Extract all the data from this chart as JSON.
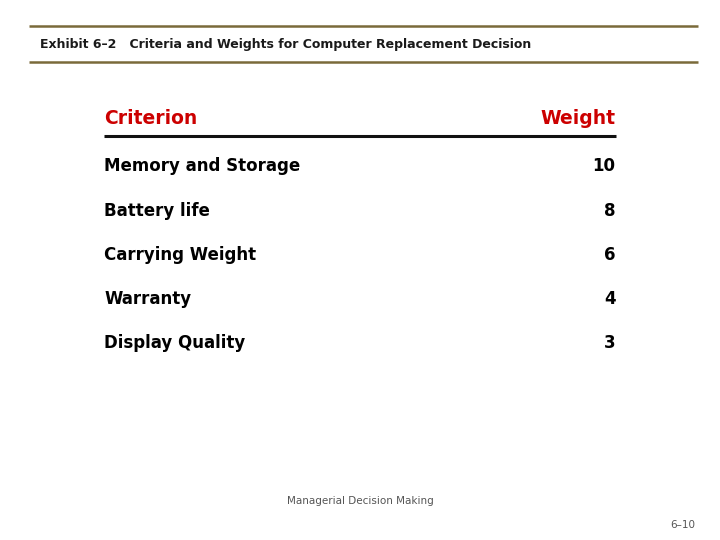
{
  "title": "Exhibit 6–2   Criteria and Weights for Computer Replacement Decision",
  "header_criterion": "Criterion",
  "header_weight": "Weight",
  "rows": [
    {
      "criterion": "Memory and Storage",
      "weight": "10"
    },
    {
      "criterion": "Battery life",
      "weight": "8"
    },
    {
      "criterion": "Carrying Weight",
      "weight": "6"
    },
    {
      "criterion": "Warranty",
      "weight": "4"
    },
    {
      "criterion": "Display Quality",
      "weight": "3"
    }
  ],
  "footer_center": "Managerial Decision Making",
  "footer_right": "6–10",
  "bg_color": "#ffffff",
  "title_color": "#1a1a1a",
  "header_color": "#cc0000",
  "row_text_color": "#000000",
  "footer_color": "#555555",
  "line_color": "#7a6a3a",
  "title_fontsize": 9.0,
  "header_fontsize": 13.5,
  "row_fontsize": 12.0,
  "footer_fontsize": 7.5,
  "slide_number_fontsize": 7.5
}
